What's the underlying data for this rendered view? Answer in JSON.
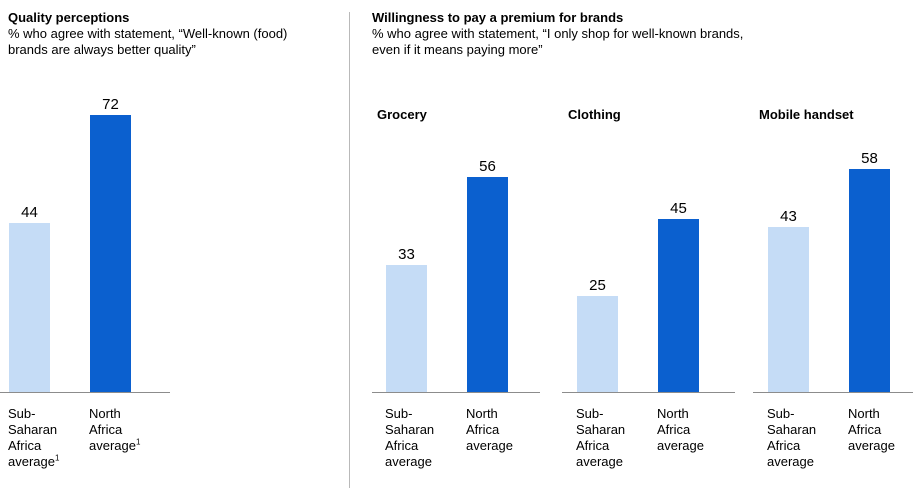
{
  "left": {
    "title": "Quality perceptions",
    "subtitle": "% who agree with statement, “Well-known (food) brands are always better quality”"
  },
  "right": {
    "title": "Willingness to pay a premium for brands",
    "subtitle": "% who agree with statement, “I only shop for well-known brands, even if it means paying more”"
  },
  "colors": {
    "light": "#c5dcf6",
    "dark": "#0b60cf"
  },
  "chart_data": [
    {
      "type": "bar",
      "title": "",
      "categories": [
        {
          "lines": [
            "Sub-",
            "Saharan",
            "Africa",
            "average"
          ],
          "sup": "1"
        },
        {
          "lines": [
            "North",
            "Africa",
            "average"
          ],
          "sup": "1"
        }
      ],
      "values": [
        44,
        72
      ],
      "ylim": [
        0,
        72
      ]
    },
    {
      "type": "bar",
      "title": "Grocery",
      "categories": [
        {
          "lines": [
            "Sub-",
            "Saharan",
            "Africa",
            "average"
          ],
          "sup": ""
        },
        {
          "lines": [
            "North",
            "Africa",
            "average"
          ],
          "sup": ""
        }
      ],
      "values": [
        33,
        56
      ],
      "ylim": [
        0,
        72
      ]
    },
    {
      "type": "bar",
      "title": "Clothing",
      "categories": [
        {
          "lines": [
            "Sub-",
            "Saharan",
            "Africa",
            "average"
          ],
          "sup": ""
        },
        {
          "lines": [
            "North",
            "Africa",
            "average"
          ],
          "sup": ""
        }
      ],
      "values": [
        25,
        45
      ],
      "ylim": [
        0,
        72
      ]
    },
    {
      "type": "bar",
      "title": "Mobile handset",
      "categories": [
        {
          "lines": [
            "Sub-",
            "Saharan",
            "Africa",
            "average"
          ],
          "sup": ""
        },
        {
          "lines": [
            "North",
            "Africa",
            "average"
          ],
          "sup": ""
        }
      ],
      "values": [
        43,
        58
      ],
      "ylim": [
        0,
        72
      ]
    }
  ]
}
